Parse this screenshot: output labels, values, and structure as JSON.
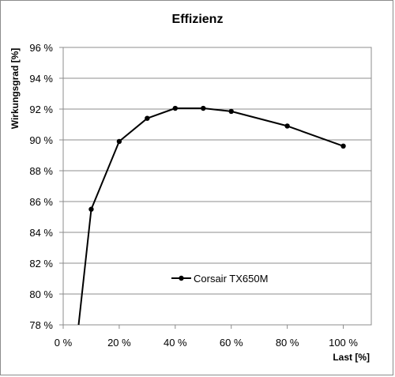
{
  "chart_data": {
    "type": "line",
    "title": "Effizienz",
    "xlabel": "Last [%]",
    "ylabel": "Wirkungsgrad [%]",
    "xlim": [
      0,
      110
    ],
    "ylim": [
      78,
      96
    ],
    "x_ticks": [
      0,
      20,
      40,
      60,
      80,
      100
    ],
    "x_tick_labels": [
      "0 %",
      "20 %",
      "40 %",
      "60 %",
      "80 %",
      "100 %"
    ],
    "y_ticks": [
      78,
      80,
      82,
      84,
      86,
      88,
      90,
      92,
      94,
      96
    ],
    "y_tick_labels": [
      "78 %",
      "80 %",
      "82 %",
      "84 %",
      "86 %",
      "88 %",
      "90 %",
      "92 %",
      "94 %",
      "96 %"
    ],
    "grid": "horizontal",
    "legend_position": "lower-center",
    "series": [
      {
        "name": "Corsair TX650M",
        "color": "#000000",
        "x": [
          5.5,
          10,
          20,
          30,
          40,
          50,
          60,
          80,
          100
        ],
        "y": [
          77.9,
          85.5,
          89.9,
          91.4,
          92.05,
          92.05,
          91.85,
          90.9,
          89.6
        ],
        "markers": [
          false,
          true,
          true,
          true,
          true,
          true,
          true,
          true,
          true
        ]
      }
    ]
  }
}
